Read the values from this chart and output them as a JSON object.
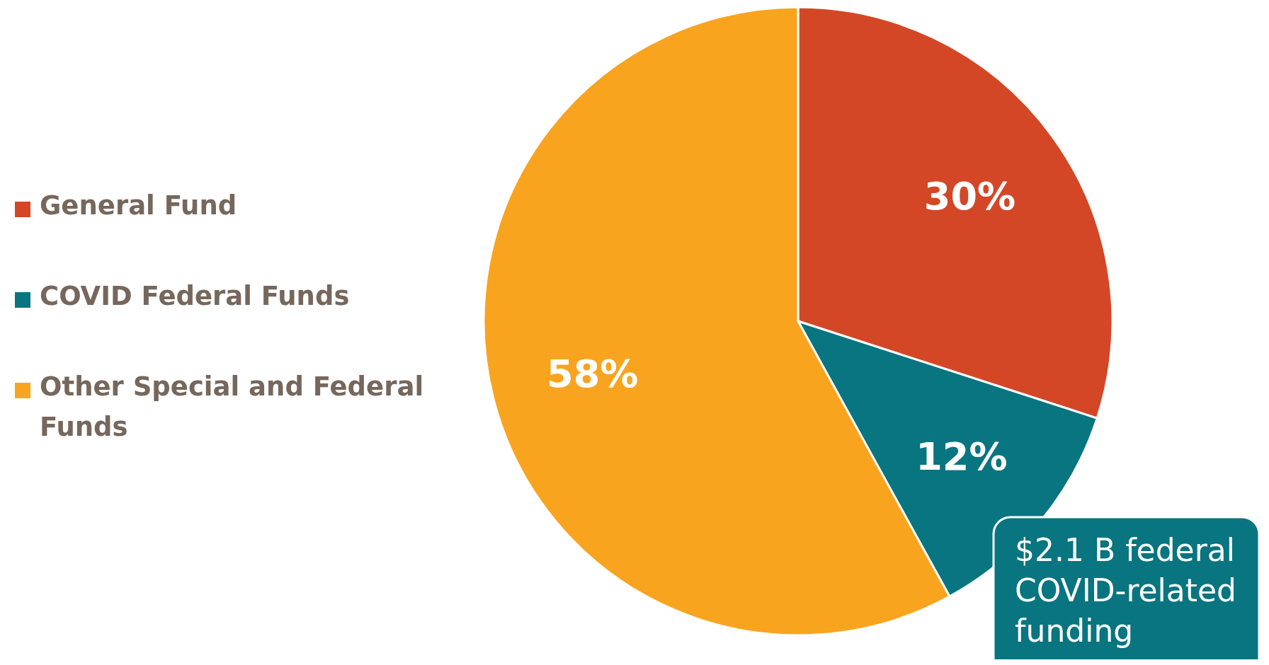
{
  "chart_data": {
    "type": "pie",
    "categories": [
      "General Fund",
      "COVID Federal Funds",
      "Other Special and Federal Funds"
    ],
    "values": [
      30,
      12,
      58
    ],
    "colors": [
      "#d34727",
      "#087580",
      "#f9a41e"
    ],
    "value_labels": [
      "30%",
      "12%",
      "58%"
    ],
    "legend": "left",
    "annotations": [
      "$2.1 B federal COVID-related funding"
    ]
  }
}
